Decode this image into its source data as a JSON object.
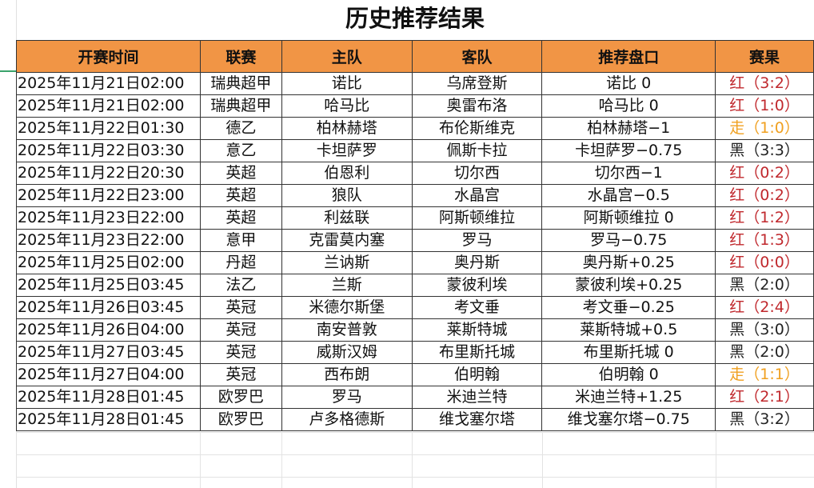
{
  "title": "历史推荐结果",
  "columns": [
    "开赛时间",
    "联赛",
    "主队",
    "客队",
    "推荐盘口",
    "赛果"
  ],
  "result_colors": {
    "红": "#c0282d",
    "走": "#f0a020",
    "黑": "#222222"
  },
  "rows": [
    [
      "2025年11月21日02:00",
      "瑞典超甲",
      "诺比",
      "乌席登斯",
      "诺比 0",
      "红（3:2）"
    ],
    [
      "2025年11月21日02:00",
      "瑞典超甲",
      "哈马比",
      "奥雷布洛",
      "哈马比 0",
      "红（1:0）"
    ],
    [
      "2025年11月22日01:30",
      "德乙",
      "柏林赫塔",
      "布伦斯维克",
      "柏林赫塔−1",
      "走（1:0）"
    ],
    [
      "2025年11月22日03:30",
      "意乙",
      "卡坦萨罗",
      "佩斯卡拉",
      "卡坦萨罗−0.75",
      "黑（3:3）"
    ],
    [
      "2025年11月22日20:30",
      "英超",
      "伯恩利",
      "切尔西",
      "切尔西−1",
      "红（0:2）"
    ],
    [
      "2025年11月22日23:00",
      "英超",
      "狼队",
      "水晶宫",
      "水晶宫−0.5",
      "红（0:2）"
    ],
    [
      "2025年11月23日22:00",
      "英超",
      "利兹联",
      "阿斯顿维拉",
      "阿斯顿维拉 0",
      "红（1:2）"
    ],
    [
      "2025年11月23日22:00",
      "意甲",
      "克雷莫内塞",
      "罗马",
      "罗马−0.75",
      "红（1:3）"
    ],
    [
      "2025年11月25日02:00",
      "丹超",
      "兰讷斯",
      "奥丹斯",
      "奥丹斯+0.25",
      "红（0:0）"
    ],
    [
      "2025年11月25日03:45",
      "法乙",
      "兰斯",
      "蒙彼利埃",
      "蒙彼利埃+0.25",
      "黑（2:0）"
    ],
    [
      "2025年11月26日03:45",
      "英冠",
      "米德尔斯堡",
      "考文垂",
      "考文垂−0.25",
      "红（2:4）"
    ],
    [
      "2025年11月26日04:00",
      "英冠",
      "南安普敦",
      "莱斯特城",
      "莱斯特城+0.5",
      "黑（3:0）"
    ],
    [
      "2025年11月27日03:45",
      "英冠",
      "威斯汉姆",
      "布里斯托城",
      "布里斯托城 0",
      "黑（2:0）"
    ],
    [
      "2025年11月27日04:00",
      "英冠",
      "西布朗",
      "伯明翰",
      "伯明翰 0",
      "走（1:1）"
    ],
    [
      "2025年11月28日01:45",
      "欧罗巴",
      "罗马",
      "米迪兰特",
      "米迪兰特+1.25",
      "红（2:1）"
    ],
    [
      "2025年11月28日01:45",
      "欧罗巴",
      "卢多格德斯",
      "维戈塞尔塔",
      "维戈塞尔塔−0.75",
      "黑（3:2）"
    ]
  ]
}
